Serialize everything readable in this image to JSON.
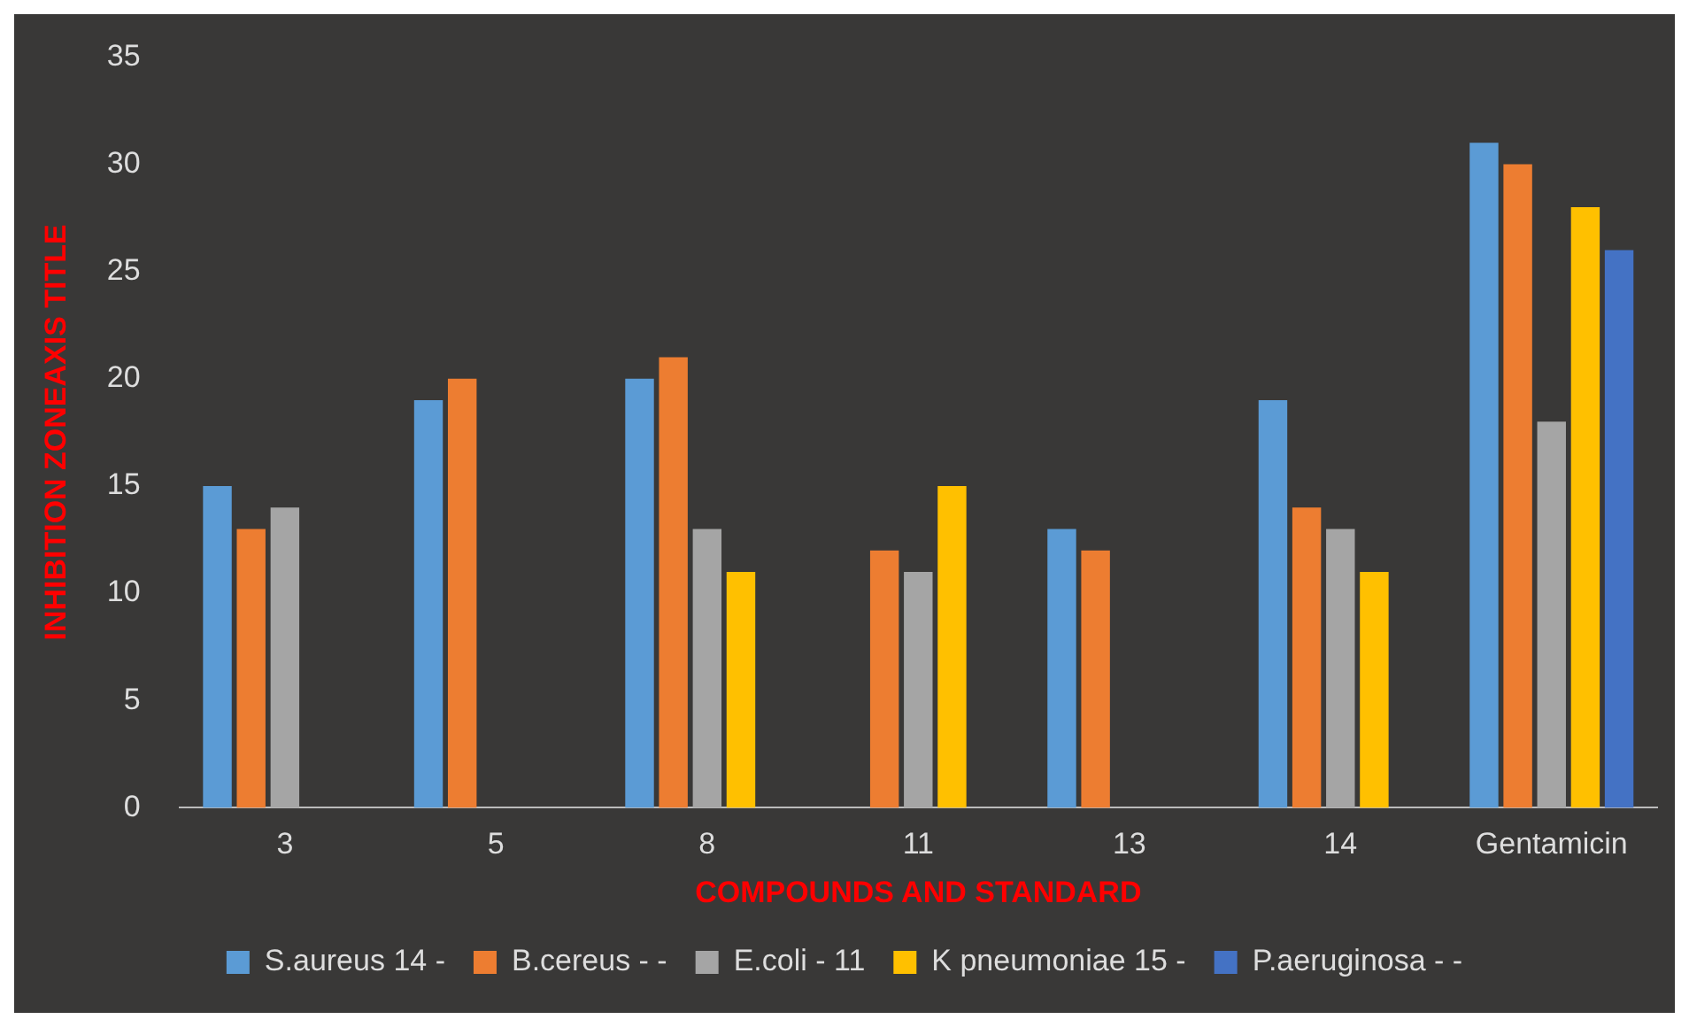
{
  "chart_data": {
    "type": "bar",
    "xlabel": "COMPOUNDS AND STANDARD",
    "ylabel": "INHIBITION ZONEAXIS TITLE",
    "categories": [
      "3",
      "5",
      "8",
      "11",
      "13",
      "14",
      "Gentamicin"
    ],
    "series": [
      {
        "name": "S.aureus 14 -",
        "color": "#5b9bd5",
        "values": [
          15,
          19,
          20,
          null,
          13,
          19,
          31
        ]
      },
      {
        "name": "B.cereus - -",
        "color": "#ed7d31",
        "values": [
          13,
          20,
          21,
          12,
          12,
          14,
          30
        ]
      },
      {
        "name": "E.coli - 11",
        "color": "#a5a5a5",
        "values": [
          14,
          null,
          13,
          11,
          null,
          13,
          18
        ]
      },
      {
        "name": "K pneumoniae 15 -",
        "color": "#ffc000",
        "values": [
          null,
          null,
          11,
          15,
          null,
          11,
          28
        ]
      },
      {
        "name": "P.aeruginosa - -",
        "color": "#4472c4",
        "values": [
          null,
          null,
          null,
          null,
          null,
          null,
          26
        ]
      }
    ],
    "ylim": [
      0,
      35
    ],
    "yticks": [
      0,
      5,
      10,
      15,
      20,
      25,
      30,
      35
    ],
    "grid": false,
    "legend": "bottom"
  }
}
